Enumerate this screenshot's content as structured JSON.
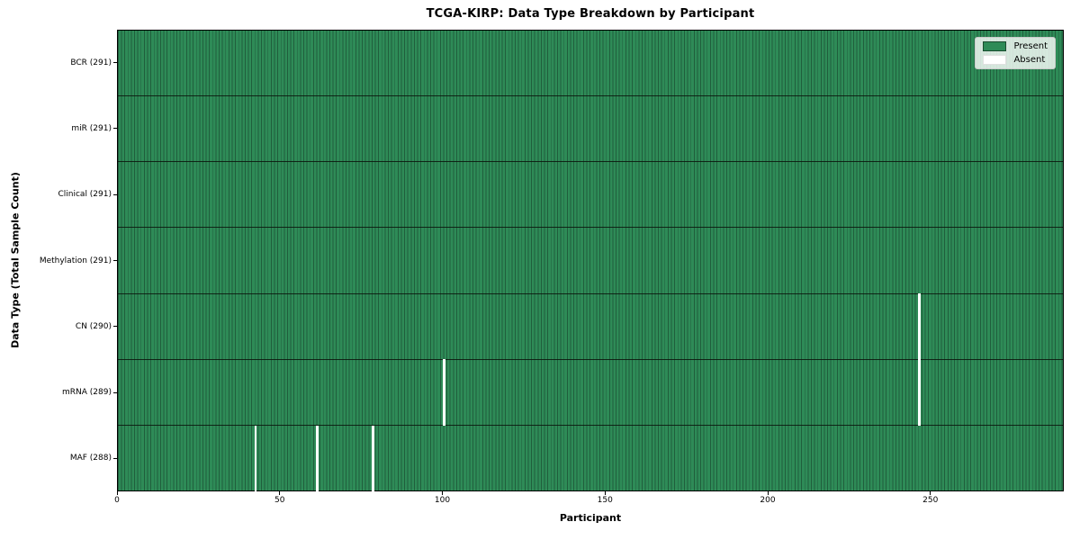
{
  "chart_data": {
    "type": "heatmap",
    "title": "TCGA-KIRP: Data Type Breakdown by Participant",
    "xlabel": "Participant",
    "ylabel": "Data Type (Total Sample Count)",
    "n_participants": 291,
    "x_ticks": [
      0,
      50,
      100,
      150,
      200,
      250
    ],
    "rows": [
      {
        "name": "BCR",
        "label": "BCR (291)",
        "total": 291,
        "absent_participants": []
      },
      {
        "name": "miR",
        "label": "miR (291)",
        "total": 291,
        "absent_participants": []
      },
      {
        "name": "Clinical",
        "label": "Clinical (291)",
        "total": 291,
        "absent_participants": []
      },
      {
        "name": "Methylation",
        "label": "Methylation (291)",
        "total": 291,
        "absent_participants": []
      },
      {
        "name": "CN",
        "label": "CN (290)",
        "total": 290,
        "absent_participants": [
          246
        ]
      },
      {
        "name": "mRNA",
        "label": "mRNA (289)",
        "total": 289,
        "absent_participants": [
          100,
          246
        ]
      },
      {
        "name": "MAF",
        "label": "MAF (288)",
        "total": 288,
        "absent_participants": [
          42,
          61,
          78
        ]
      }
    ],
    "legend": [
      {
        "label": "Present",
        "color": "#2e8b57"
      },
      {
        "label": "Absent",
        "color": "#ffffff"
      }
    ],
    "colors": {
      "present": "#2e8b57",
      "absent": "#ffffff",
      "cell_edge": "#205e3c",
      "row_divider": "#0a140c",
      "axis": "#000000",
      "figure_bg": "#ffffff"
    },
    "grid": "cell-edges-visible",
    "legend_position": "upper-right"
  }
}
